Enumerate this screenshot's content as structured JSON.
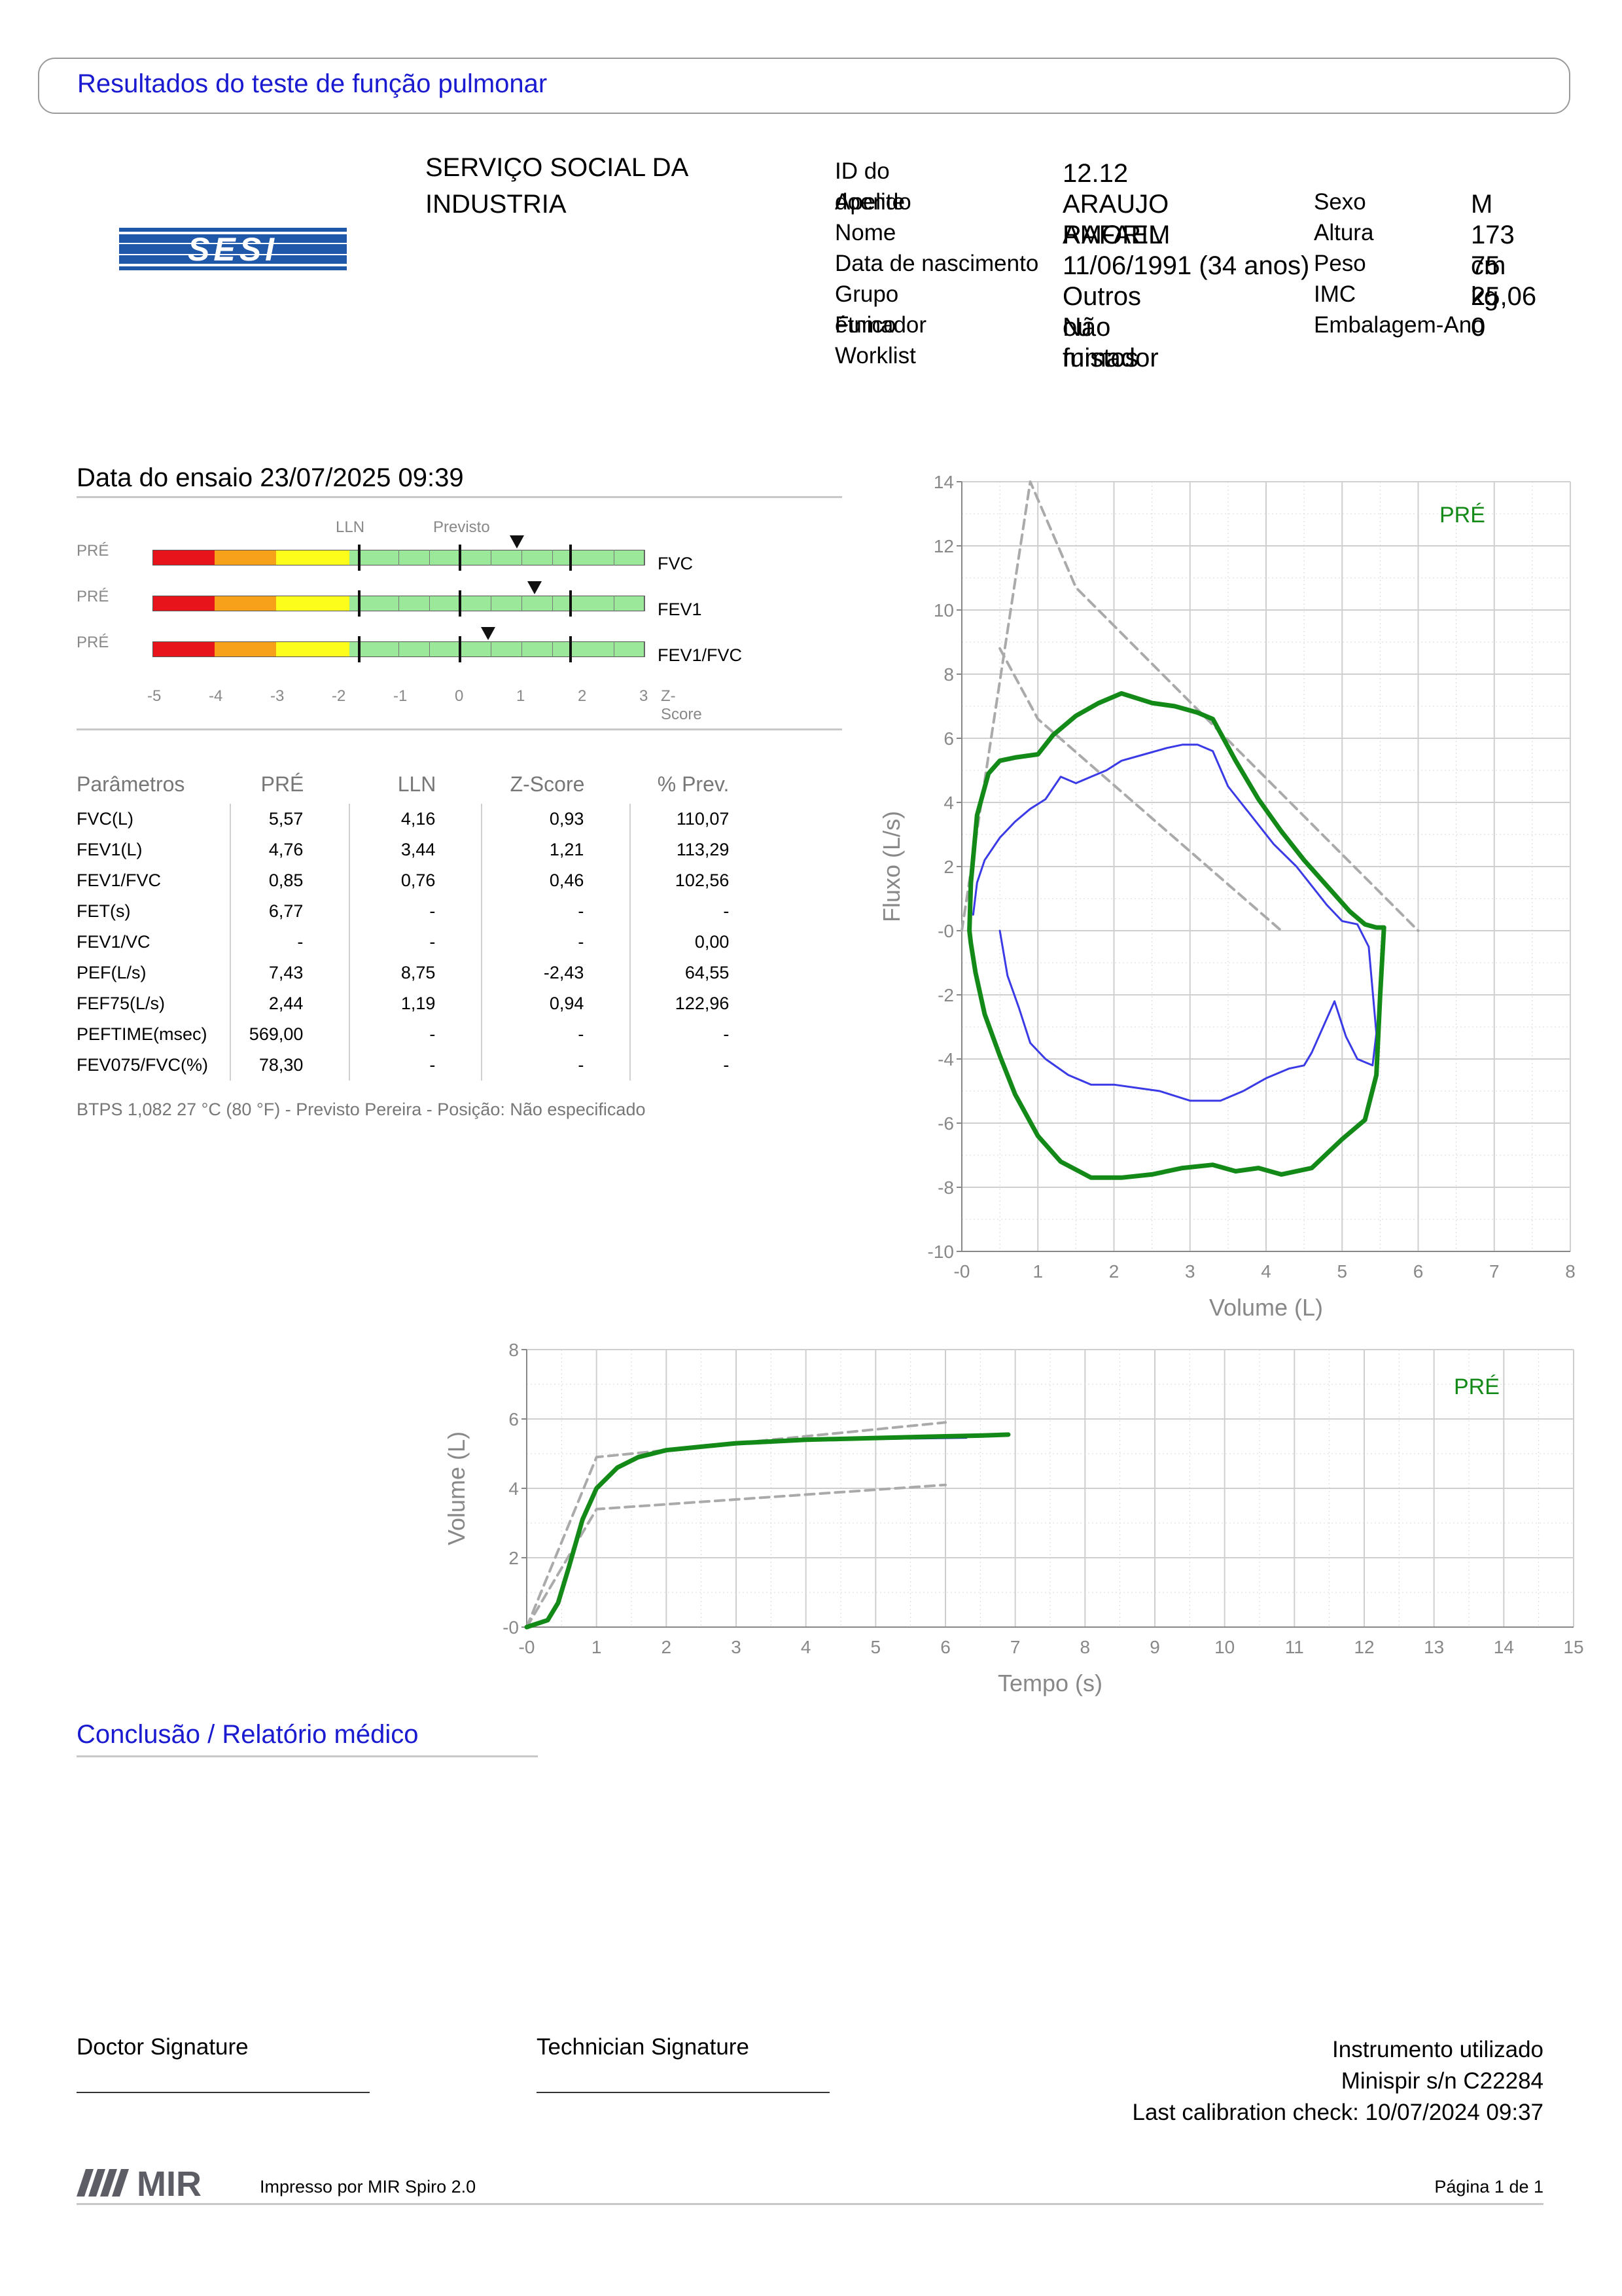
{
  "header": {
    "title": "Resultados do teste de função pulmonar"
  },
  "logo": {
    "text": "SESI",
    "color": "#1f58a8"
  },
  "organization": {
    "line1": "SERVIÇO SOCIAL DA",
    "line2": "INDUSTRIA"
  },
  "patient": {
    "id_label": "ID do doente",
    "id": "12.12",
    "surname_label": "Apelido",
    "surname": "ARAUJO AMORIM",
    "name_label": "Nome",
    "name": "RAFAEL",
    "dob_label": "Data de nascimento",
    "dob": "11/06/1991 (34 anos)",
    "ethnic_label": "Grupo étnico",
    "ethnic": "Outros ou mistos",
    "smoker_label": "Fumador",
    "smoker": "Não fumador",
    "worklist_label": "Worklist",
    "sex_label": "Sexo",
    "sex": "M",
    "height_label": "Altura",
    "height": "173 cm",
    "weight_label": "Peso",
    "weight": "75 kg",
    "bmi_label": "IMC",
    "bmi": "25,06",
    "packyears_label": "Embalagem-Ano",
    "packyears": "0"
  },
  "test": {
    "date": "Data do ensaio 23/07/2025 09:39"
  },
  "zscore_panel": {
    "lln_label": "LLN",
    "predicted_label": "Previsto",
    "ticks": [
      "-5",
      "-4",
      "-3",
      "-2",
      "-1",
      "0",
      "1",
      "2",
      "3"
    ],
    "axis_label": "Z-Score",
    "colors": {
      "red": "#e8141c",
      "orange": "#f7a11a",
      "yellow": "#fdfd1c",
      "green": "#9be89b"
    },
    "rows": [
      {
        "phase": "PRÉ",
        "name": "FVC",
        "z": 0.93
      },
      {
        "phase": "PRÉ",
        "name": "FEV1",
        "z": 1.21
      },
      {
        "phase": "PRÉ",
        "name": "FEV1/FVC",
        "z": 0.46
      }
    ]
  },
  "params_table": {
    "headers": [
      "Parâmetros",
      "PRÉ",
      "LLN",
      "Z-Score",
      "% Prev."
    ],
    "rows": [
      [
        "FVC(L)",
        "5,57",
        "4,16",
        "0,93",
        "110,07"
      ],
      [
        "FEV1(L)",
        "4,76",
        "3,44",
        "1,21",
        "113,29"
      ],
      [
        "FEV1/FVC",
        "0,85",
        "0,76",
        "0,46",
        "102,56"
      ],
      [
        "FET(s)",
        "6,77",
        "-",
        "-",
        "-"
      ],
      [
        "FEV1/VC",
        "-",
        "-",
        "-",
        "0,00"
      ],
      [
        "PEF(L/s)",
        "7,43",
        "8,75",
        "-2,43",
        "64,55"
      ],
      [
        "FEF75(L/s)",
        "2,44",
        "1,19",
        "0,94",
        "122,96"
      ],
      [
        "PEFTIME(msec)",
        "569,00",
        "-",
        "-",
        "-"
      ],
      [
        "FEV075/FVC(%)",
        "78,30",
        "-",
        "-",
        "-"
      ]
    ]
  },
  "btps_note": "BTPS 1,082 27 °C (80 °F) - Previsto Pereira - Posição: Não especificado",
  "chart_data": [
    {
      "type": "line",
      "xlabel": "Volume (L)",
      "ylabel": "Fluxo (L/s)",
      "xlim": [
        0,
        8
      ],
      "ylim": [
        -10,
        14
      ],
      "xticks": [
        "-0",
        "1",
        "2",
        "3",
        "4",
        "5",
        "6",
        "7",
        "8"
      ],
      "yticks": [
        "14",
        "12",
        "10",
        "8",
        "6",
        "4",
        "2",
        "-0",
        "-2",
        "-4",
        "-6",
        "-8",
        "-10"
      ],
      "grid": true,
      "legend": "PRÉ",
      "colors": {
        "best": "#138a18",
        "other": "#3a3ae6",
        "predicted": "#aaaaaa"
      },
      "series": [
        {
          "kind": "best",
          "x": [
            0.1,
            0.12,
            0.2,
            0.35,
            0.5,
            0.7,
            1.0,
            1.2,
            1.5,
            1.8,
            2.1,
            2.5,
            2.8,
            3.1,
            3.3,
            3.6,
            3.9,
            4.2,
            4.5,
            4.8,
            5.1,
            5.3,
            5.45,
            5.55,
            5.5,
            5.45,
            5.3,
            5.0,
            4.6,
            4.2,
            3.9,
            3.6,
            3.3,
            2.9,
            2.5,
            2.1,
            1.7,
            1.3,
            1.0,
            0.7,
            0.5,
            0.3,
            0.18,
            0.12,
            0.1
          ],
          "y": [
            0,
            1.5,
            3.6,
            4.9,
            5.3,
            5.4,
            5.5,
            6.1,
            6.7,
            7.1,
            7.4,
            7.1,
            7.0,
            6.8,
            6.6,
            5.3,
            4.1,
            3.1,
            2.2,
            1.4,
            0.6,
            0.2,
            0.1,
            0.1,
            -2.0,
            -4.5,
            -5.9,
            -6.5,
            -7.4,
            -7.6,
            -7.4,
            -7.5,
            -7.3,
            -7.4,
            -7.6,
            -7.7,
            -7.7,
            -7.2,
            -6.4,
            -5.1,
            -3.9,
            -2.6,
            -1.3,
            -0.4,
            0
          ]
        },
        {
          "kind": "other",
          "x": [
            0.15,
            0.2,
            0.3,
            0.5,
            0.7,
            0.9,
            1.1,
            1.3,
            1.5,
            1.7,
            1.9,
            2.1,
            2.4,
            2.7,
            2.9,
            3.1,
            3.3,
            3.5,
            3.8,
            4.1,
            4.4,
            4.6,
            4.8,
            5.0,
            5.2,
            5.35,
            5.45,
            5.4,
            5.2,
            5.05,
            4.9,
            4.75,
            4.6,
            4.5,
            4.3,
            4.0,
            3.7,
            3.4,
            3.0,
            2.6,
            2.3,
            2.0,
            1.7,
            1.4,
            1.1,
            0.9,
            0.75,
            0.6,
            0.5
          ],
          "y": [
            0.5,
            1.5,
            2.2,
            2.9,
            3.4,
            3.8,
            4.1,
            4.8,
            4.6,
            4.8,
            5.0,
            5.3,
            5.5,
            5.7,
            5.8,
            5.8,
            5.6,
            4.5,
            3.6,
            2.7,
            2.0,
            1.4,
            0.8,
            0.3,
            0.2,
            -0.5,
            -3.2,
            -4.2,
            -4.0,
            -3.3,
            -2.2,
            -3.0,
            -3.8,
            -4.2,
            -4.3,
            -4.6,
            -5.0,
            -5.3,
            -5.3,
            -5.0,
            -4.9,
            -4.8,
            -4.8,
            -4.5,
            -4.0,
            -3.5,
            -2.4,
            -1.4,
            0
          ]
        },
        {
          "kind": "predicted",
          "x": [
            0,
            0.9,
            1.5,
            6.0
          ],
          "y": [
            0,
            14.0,
            10.7,
            0
          ]
        },
        {
          "kind": "predicted",
          "x": [
            0.5,
            1.0,
            4.2
          ],
          "y": [
            8.8,
            6.6,
            0
          ]
        }
      ]
    },
    {
      "type": "line",
      "xlabel": "Tempo (s)",
      "ylabel": "Volume (L)",
      "xlim": [
        0,
        15
      ],
      "ylim": [
        0,
        8
      ],
      "xticks": [
        "-0",
        "1",
        "2",
        "3",
        "4",
        "5",
        "6",
        "7",
        "8",
        "9",
        "10",
        "11",
        "12",
        "13",
        "14",
        "15"
      ],
      "yticks": [
        "8",
        "6",
        "4",
        "2",
        "-0"
      ],
      "grid": true,
      "legend": "PRÉ",
      "colors": {
        "best": "#138a18",
        "other": "#1a1aa8",
        "predicted": "#aaaaaa"
      },
      "series": [
        {
          "kind": "best",
          "x": [
            0,
            0.15,
            0.3,
            0.45,
            0.6,
            0.8,
            1.0,
            1.3,
            1.6,
            2.0,
            2.5,
            3.0,
            3.5,
            4.0,
            5.0,
            6.0,
            6.5,
            6.9
          ],
          "y": [
            0,
            0.1,
            0.2,
            0.7,
            1.7,
            3.1,
            4.0,
            4.6,
            4.9,
            5.1,
            5.2,
            5.3,
            5.35,
            5.4,
            5.45,
            5.5,
            5.52,
            5.55
          ]
        },
        {
          "kind": "other",
          "x": [
            3.0,
            4.0,
            5.0,
            6.0,
            6.3
          ],
          "y": [
            5.3,
            5.38,
            5.42,
            5.45,
            5.46
          ]
        },
        {
          "kind": "predicted",
          "x": [
            0,
            1.0,
            6.0
          ],
          "y": [
            0,
            4.9,
            5.9
          ]
        },
        {
          "kind": "predicted",
          "x": [
            0,
            1.0,
            6.0
          ],
          "y": [
            0,
            3.4,
            4.1
          ]
        }
      ]
    }
  ],
  "conclusion": {
    "title": "Conclusão / Relatório médico"
  },
  "signatures": {
    "doctor": "Doctor Signature",
    "technician": "Technician Signature"
  },
  "instrument": {
    "label": "Instrumento utilizado",
    "model": "Minispir s/n C22284",
    "calibration": "Last calibration check: 10/07/2024 09:37"
  },
  "footer": {
    "brand": "MIR",
    "printed_by": "Impresso por MIR Spiro 2.0",
    "page": "Página 1 de 1"
  }
}
